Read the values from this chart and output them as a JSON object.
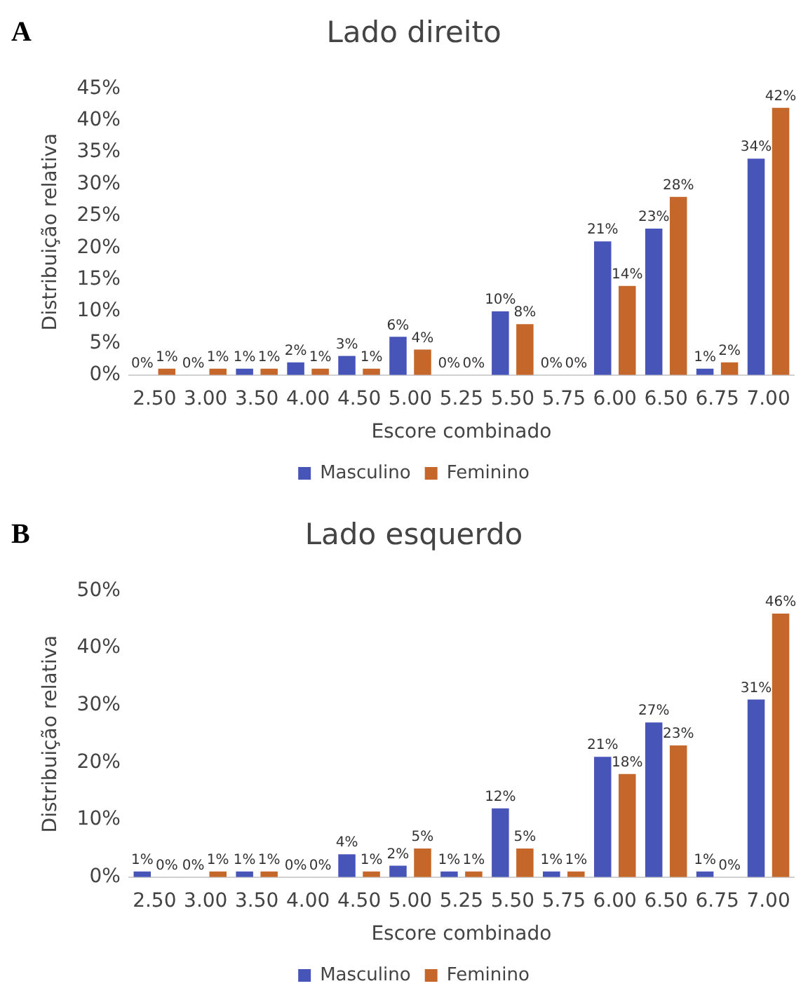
{
  "chart_data": [
    {
      "type": "bar",
      "title": "Lado direito",
      "xlabel": "Escore combinado",
      "ylabel": "Distribuição relativa",
      "annotations": [
        "A"
      ],
      "categories": [
        "2.50",
        "3.00",
        "3.50",
        "4.00",
        "4.50",
        "5.00",
        "5.25",
        "5.50",
        "5.75",
        "6.00",
        "6.50",
        "6.75",
        "7.00"
      ],
      "series": [
        {
          "name": "Masculino",
          "color": "#4755b8",
          "values": [
            0,
            0,
            1,
            2,
            3,
            6,
            0,
            10,
            0,
            21,
            23,
            1,
            34
          ],
          "value_labels": [
            "0%",
            "0%",
            "1%",
            "2%",
            "3%",
            "6%",
            "0%",
            "10%",
            "0%",
            "21%",
            "23%",
            "1%",
            "34%"
          ]
        },
        {
          "name": "Feminino",
          "color": "#c5672b",
          "values": [
            1,
            1,
            1,
            1,
            1,
            4,
            0,
            8,
            0,
            14,
            28,
            2,
            42
          ],
          "value_labels": [
            "1%",
            "1%",
            "1%",
            "1%",
            "1%",
            "4%",
            "0%",
            "8%",
            "0%",
            "14%",
            "28%",
            "2%",
            "42%"
          ]
        }
      ],
      "ylim": [
        0,
        45
      ],
      "yticks": [
        {
          "value": 0,
          "label": "0%"
        },
        {
          "value": 5,
          "label": "5%"
        },
        {
          "value": 10,
          "label": "10%"
        },
        {
          "value": 15,
          "label": "15%"
        },
        {
          "value": 20,
          "label": "20%"
        },
        {
          "value": 25,
          "label": "25%"
        },
        {
          "value": 30,
          "label": "30%"
        },
        {
          "value": 35,
          "label": "35%"
        },
        {
          "value": 40,
          "label": "40%"
        },
        {
          "value": 45,
          "label": "45%"
        }
      ],
      "grid": false,
      "legend": "bottom"
    },
    {
      "type": "bar",
      "title": "Lado esquerdo",
      "xlabel": "Escore combinado",
      "ylabel": "Distribuição relativa",
      "annotations": [
        "B"
      ],
      "categories": [
        "2.50",
        "3.00",
        "3.50",
        "4.00",
        "4.50",
        "5.00",
        "5.25",
        "5.50",
        "5.75",
        "6.00",
        "6.50",
        "6.75",
        "7.00"
      ],
      "series": [
        {
          "name": "Masculino",
          "color": "#4755b8",
          "values": [
            1,
            0,
            1,
            0,
            4,
            2,
            1,
            12,
            1,
            21,
            27,
            1,
            31
          ],
          "value_labels": [
            "1%",
            "0%",
            "1%",
            "0%",
            "4%",
            "2%",
            "1%",
            "12%",
            "1%",
            "21%",
            "27%",
            "1%",
            "31%"
          ]
        },
        {
          "name": "Feminino",
          "color": "#c5672b",
          "values": [
            0,
            1,
            1,
            0,
            1,
            5,
            1,
            5,
            1,
            18,
            23,
            0,
            46
          ],
          "value_labels": [
            "0%",
            "1%",
            "1%",
            "0%",
            "1%",
            "5%",
            "1%",
            "5%",
            "1%",
            "18%",
            "23%",
            "0%",
            "46%"
          ]
        }
      ],
      "ylim": [
        0,
        50
      ],
      "yticks": [
        {
          "value": 0,
          "label": "0%"
        },
        {
          "value": 10,
          "label": "10%"
        },
        {
          "value": 20,
          "label": "20%"
        },
        {
          "value": 30,
          "label": "30%"
        },
        {
          "value": 40,
          "label": "40%"
        },
        {
          "value": 50,
          "label": "50%"
        }
      ],
      "grid": false,
      "legend": "bottom"
    }
  ]
}
